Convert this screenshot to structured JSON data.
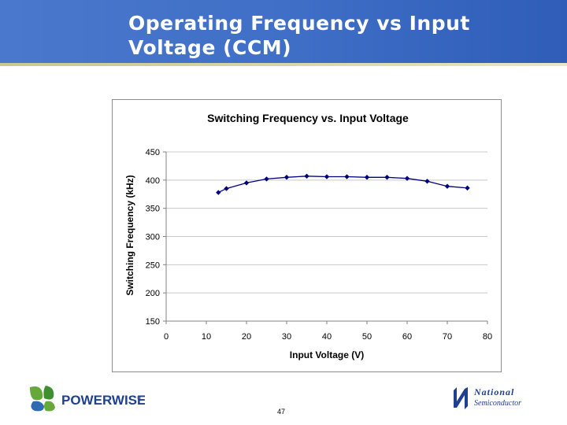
{
  "slide": {
    "title_line1": "Operating Frequency vs Input",
    "title_line2": "Voltage (CCM)",
    "page_number": "47",
    "logo_left_text": "POWERWISE",
    "logo_left_mark": "®",
    "logo_right_line1": "National",
    "logo_right_line2": "Semiconductor"
  },
  "colors": {
    "header": "#3f6fc7",
    "series": "#00007f",
    "logo_green": "#66a83a",
    "logo_blue": "#1f3f8f"
  },
  "chart_data": {
    "type": "line",
    "title": "Switching Frequency vs. Input Voltage",
    "xlabel": "Input Voltage (V)",
    "ylabel": "Switching Frequency (kHz)",
    "xlim": [
      0,
      80
    ],
    "ylim": [
      150,
      450
    ],
    "xticks": [
      0,
      10,
      20,
      30,
      40,
      50,
      60,
      70,
      80
    ],
    "yticks": [
      150,
      200,
      250,
      300,
      350,
      400,
      450
    ],
    "grid": "horizontal",
    "legend": "none",
    "series": [
      {
        "x": [
          13,
          15,
          20,
          25,
          30,
          35,
          40,
          45,
          50,
          55,
          60,
          65,
          70,
          75
        ],
        "y": [
          378,
          385,
          395,
          402,
          405,
          407,
          406,
          406,
          405,
          405,
          403,
          398,
          389,
          386
        ]
      }
    ]
  }
}
